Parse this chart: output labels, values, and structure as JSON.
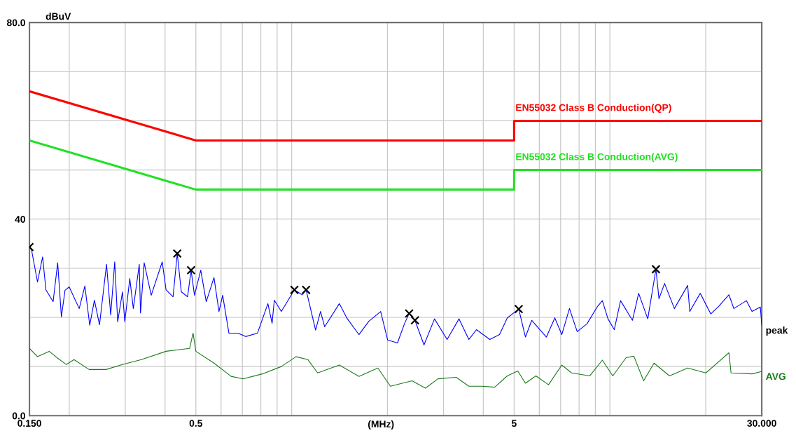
{
  "chart_data": {
    "type": "line",
    "xlabel": "(MHz)",
    "ylabel": "dBuV",
    "log": "x",
    "grid": true,
    "marker": "none",
    "line_style": "solid",
    "xlim": [
      0.15,
      30
    ],
    "ylim": [
      0,
      80
    ],
    "xticks": [
      {
        "value": 0.15,
        "label": "0.150"
      },
      {
        "value": 0.2,
        "label": null
      },
      {
        "value": 0.3,
        "label": null
      },
      {
        "value": 0.4,
        "label": null
      },
      {
        "value": 0.5,
        "label": "0.5"
      },
      {
        "value": 0.6,
        "label": null
      },
      {
        "value": 0.7,
        "label": null
      },
      {
        "value": 0.8,
        "label": null
      },
      {
        "value": 0.9,
        "label": null
      },
      {
        "value": 1,
        "label": null
      },
      {
        "value": 2,
        "label": null
      },
      {
        "value": 3,
        "label": null
      },
      {
        "value": 4,
        "label": null
      },
      {
        "value": 5,
        "label": "5"
      },
      {
        "value": 6,
        "label": null
      },
      {
        "value": 7,
        "label": null
      },
      {
        "value": 8,
        "label": null
      },
      {
        "value": 9,
        "label": null
      },
      {
        "value": 10,
        "label": null
      },
      {
        "value": 20,
        "label": null
      },
      {
        "value": 30,
        "label": "30.000"
      }
    ],
    "yticks": [
      {
        "value": 0,
        "label": "0.0"
      },
      {
        "value": 10,
        "label": null
      },
      {
        "value": 20,
        "label": null
      },
      {
        "value": 30,
        "label": null
      },
      {
        "value": 40,
        "label": "40"
      },
      {
        "value": 50,
        "label": null
      },
      {
        "value": 60,
        "label": null
      },
      {
        "value": 70,
        "label": null
      },
      {
        "value": 80,
        "label": "80.0"
      }
    ],
    "series": [
      {
        "name": "EN55032 Class B Conduction(QP)",
        "color": "#ff0000",
        "x": [
          0.15,
          0.5,
          5,
          5,
          30
        ],
        "values": [
          66,
          56,
          56,
          60,
          60
        ]
      },
      {
        "name": "EN55032 Class B Conduction(AVG)",
        "color": "#22e022",
        "x": [
          0.15,
          0.5,
          5,
          5,
          30
        ],
        "values": [
          56,
          46,
          46,
          50,
          50
        ]
      },
      {
        "name": "peak",
        "color": "#0000ff",
        "x": [
          0.152,
          0.159,
          0.165,
          0.169,
          0.178,
          0.184,
          0.189,
          0.194,
          0.2,
          0.215,
          0.224,
          0.232,
          0.24,
          0.249,
          0.262,
          0.27,
          0.278,
          0.284,
          0.294,
          0.299,
          0.31,
          0.318,
          0.332,
          0.335,
          0.344,
          0.362,
          0.392,
          0.403,
          0.424,
          0.437,
          0.45,
          0.471,
          0.483,
          0.495,
          0.518,
          0.539,
          0.57,
          0.591,
          0.607,
          0.635,
          0.678,
          0.717,
          0.781,
          0.842,
          0.868,
          0.882,
          0.928,
          1.02,
          1.079,
          1.11,
          1.189,
          1.232,
          1.27,
          1.412,
          1.493,
          1.627,
          1.747,
          1.904,
          2.003,
          2.15,
          2.261,
          2.34,
          2.44,
          2.605,
          2.811,
          3.079,
          3.355,
          3.603,
          3.808,
          4.193,
          4.499,
          4.759,
          5.17,
          5.427,
          5.679,
          6.316,
          6.712,
          7.06,
          7.461,
          7.892,
          8.471,
          9.135,
          9.468,
          9.861,
          10.32,
          10.8,
          11.77,
          12.31,
          13.15,
          13.95,
          14.26,
          14.85,
          15.94,
          17.55,
          17.82,
          19.22,
          20.74,
          21.93,
          23.66,
          24.51,
          26.85,
          27.96,
          29.69,
          30.0
        ],
        "values": [
          34.0,
          27.2,
          32.3,
          25.6,
          23.2,
          31.1,
          20.1,
          25.5,
          26.2,
          21.8,
          26.4,
          18.4,
          23.5,
          18.5,
          30.8,
          20.5,
          31.3,
          19.1,
          25.2,
          19.1,
          27.9,
          21.8,
          30.8,
          20.9,
          31.1,
          24.5,
          31.3,
          25.6,
          24.2,
          33.0,
          25.2,
          24.2,
          29.6,
          24.5,
          29.6,
          23.2,
          28.1,
          21.2,
          24.5,
          16.8,
          16.8,
          16.1,
          16.8,
          22.8,
          18.8,
          23.5,
          21.2,
          25.6,
          24.6,
          25.6,
          17.4,
          21.2,
          18.1,
          22.8,
          19.8,
          16.5,
          19.2,
          21.2,
          15.4,
          14.8,
          18.7,
          20.8,
          19.4,
          14.4,
          19.7,
          15.5,
          19.7,
          15.5,
          17.5,
          15.5,
          16.5,
          19.9,
          21.7,
          16.0,
          19.4,
          16.0,
          19.9,
          16.5,
          21.8,
          17.1,
          18.7,
          22.2,
          23.4,
          19.7,
          17.5,
          23.4,
          19.4,
          24.9,
          19.7,
          29.8,
          23.8,
          26.9,
          21.8,
          26.5,
          21.2,
          24.9,
          20.7,
          22.2,
          24.6,
          21.8,
          23.4,
          21.2,
          22.1,
          18.4
        ]
      },
      {
        "name": "AVG",
        "color": "#1a7a1a",
        "x": [
          0.15,
          0.159,
          0.173,
          0.184,
          0.196,
          0.207,
          0.231,
          0.261,
          0.294,
          0.337,
          0.403,
          0.478,
          0.49,
          0.5,
          0.57,
          0.645,
          0.703,
          0.809,
          0.928,
          1.032,
          1.125,
          1.207,
          1.412,
          1.627,
          1.866,
          2.043,
          2.39,
          2.632,
          2.883,
          3.289,
          3.603,
          3.965,
          4.344,
          4.759,
          5.133,
          5.427,
          5.855,
          6.413,
          7.06,
          7.578,
          8.644,
          9.468,
          10.21,
          11.24,
          11.89,
          12.76,
          13.76,
          15.39,
          17.55,
          20.02,
          23.66,
          24.02,
          27.96,
          30.0
        ],
        "values": [
          13.7,
          12.0,
          13.1,
          11.7,
          10.4,
          11.4,
          9.4,
          9.4,
          10.4,
          11.4,
          13.1,
          13.7,
          16.8,
          13.1,
          10.7,
          8.0,
          7.5,
          8.5,
          10.0,
          12.0,
          11.4,
          8.7,
          10.3,
          8.0,
          9.7,
          6.0,
          7.1,
          5.6,
          7.5,
          7.8,
          6.0,
          6.0,
          5.8,
          8.1,
          9.1,
          6.6,
          8.1,
          6.3,
          10.3,
          8.7,
          8.1,
          11.3,
          8.1,
          11.8,
          12.1,
          7.1,
          10.7,
          8.1,
          9.7,
          8.7,
          12.8,
          8.7,
          8.5,
          9.0
        ]
      },
      {
        "type": "scatter",
        "marker": "cross",
        "color": "#000000",
        "x": [
          0.15,
          0.437,
          0.483,
          1.02,
          1.11,
          2.34,
          2.44,
          5.17,
          13.95
        ],
        "values": [
          34.3,
          33.0,
          29.6,
          25.6,
          25.6,
          20.8,
          19.4,
          21.7,
          29.8
        ]
      }
    ]
  }
}
